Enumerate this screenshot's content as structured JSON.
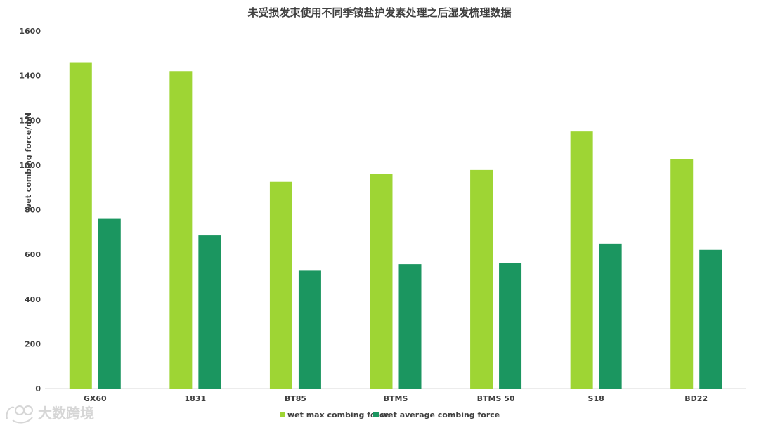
{
  "chart_data": {
    "type": "bar",
    "title": "未受损发束使用不同季铵盐护发素处理之后湿发梳理数据",
    "ylabel": "wet combing force/mN",
    "xlabel": "",
    "ylim": [
      0,
      1600
    ],
    "yticks": [
      0,
      200,
      400,
      600,
      800,
      1000,
      1200,
      1400,
      1600
    ],
    "grid": false,
    "legend_position": "bottom",
    "categories": [
      "GX60",
      "1831",
      "BT85",
      "BTMS",
      "BTMS 50",
      "S18",
      "BD22"
    ],
    "series": [
      {
        "name": "wet max combing force",
        "color": "#9ed534",
        "values": [
          1460,
          1420,
          925,
          960,
          978,
          1150,
          1025
        ]
      },
      {
        "name": "wet average combing force",
        "color": "#1b9660",
        "values": [
          762,
          685,
          530,
          556,
          562,
          648,
          620
        ]
      }
    ]
  },
  "watermark": {
    "text": "大数跨境",
    "icon": "logo-icon"
  }
}
